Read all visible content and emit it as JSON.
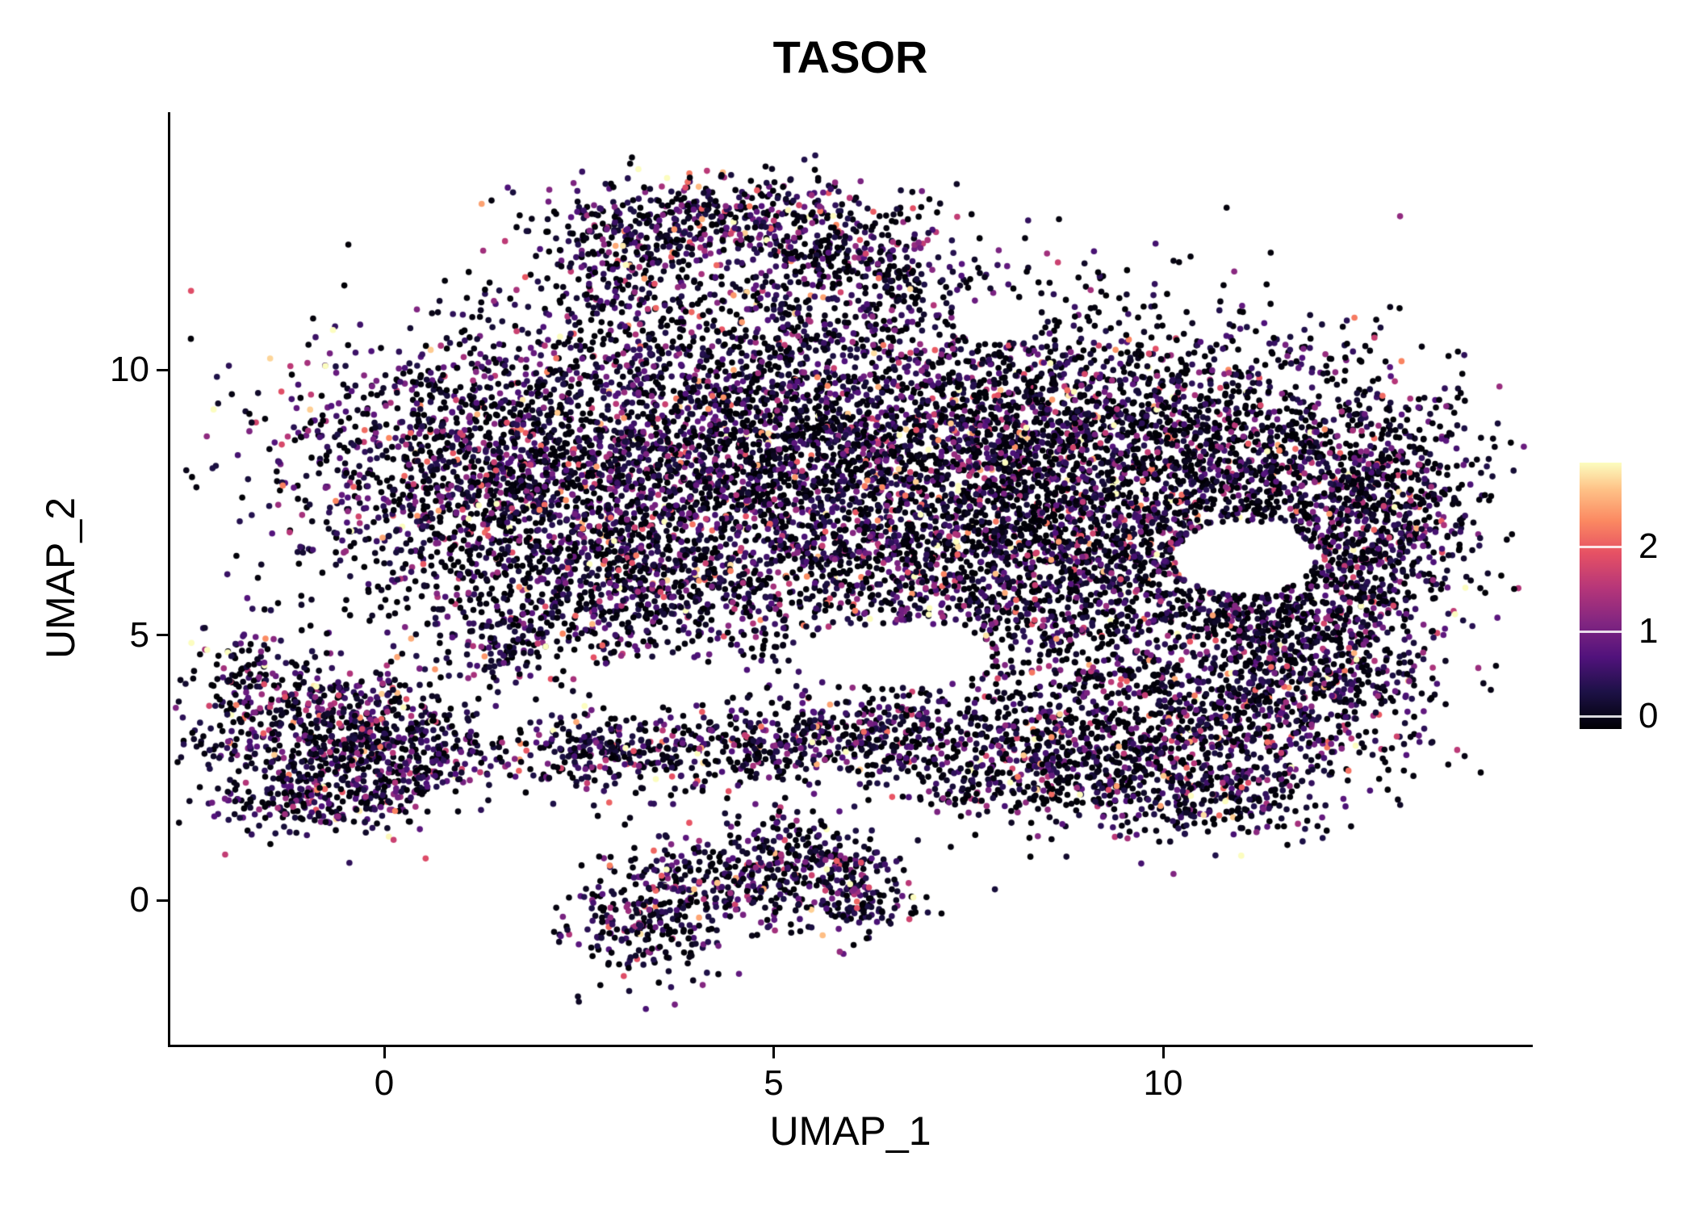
{
  "chart_data": {
    "type": "scatter",
    "title": "TASOR",
    "xlabel": "UMAP_1",
    "ylabel": "UMAP_2",
    "grid": false,
    "legend_position": "right",
    "axes": {
      "x": {
        "label": "UMAP_1",
        "ticks": [
          0,
          5,
          10
        ],
        "range": [
          -2.8,
          14.7
        ]
      },
      "y": {
        "label": "UMAP_2",
        "ticks": [
          0,
          5,
          10
        ],
        "range": [
          -2.7,
          14.8
        ]
      }
    },
    "legend": {
      "ticks": [
        2,
        1,
        0
      ],
      "range": [
        0,
        2.9
      ]
    },
    "colormap": {
      "name": "magma",
      "stops": [
        [
          0.0,
          "#000004"
        ],
        [
          0.14,
          "#1d1147"
        ],
        [
          0.27,
          "#51127c"
        ],
        [
          0.4,
          "#822681"
        ],
        [
          0.53,
          "#b63679"
        ],
        [
          0.66,
          "#e65164"
        ],
        [
          0.78,
          "#fb8861"
        ],
        [
          0.9,
          "#fec287"
        ],
        [
          1.0,
          "#fcfdbf"
        ]
      ]
    },
    "background": "#ffffff",
    "axis_color": "#000000",
    "points": {
      "radius": 3.8,
      "zero_frac": 0.3,
      "exp_scale": 0.65,
      "max_value": 2.9,
      "total": 16870
    },
    "holes": [
      {
        "x": 11.05,
        "y": 6.45,
        "rx": 0.9,
        "ry": 0.7
      },
      {
        "x": 6.5,
        "y": 4.6,
        "rx": 1.3,
        "ry": 0.6
      },
      {
        "x": 3.6,
        "y": 4.1,
        "rx": 1.1,
        "ry": 0.45
      },
      {
        "x": 7.9,
        "y": 10.9,
        "rx": 0.6,
        "ry": 0.4
      }
    ],
    "clusters": [
      {
        "x": 4.4,
        "y": 12.8,
        "sx": 1.1,
        "sy": 0.45,
        "n": 500,
        "zf": 0.25
      },
      {
        "x": 6.2,
        "y": 12.1,
        "sx": 0.7,
        "sy": 0.45,
        "n": 220,
        "zf": 0.3
      },
      {
        "x": 3.1,
        "y": 11.9,
        "sx": 0.5,
        "sy": 0.5,
        "n": 160,
        "zf": 0.25
      },
      {
        "x": 4.8,
        "y": 11.2,
        "sx": 1.5,
        "sy": 0.7,
        "n": 220,
        "zf": 0.35
      },
      {
        "x": 1.2,
        "y": 8.1,
        "sx": 1.3,
        "sy": 1.3,
        "n": 1500,
        "zf": 0.28
      },
      {
        "x": 3.9,
        "y": 8.7,
        "sx": 1.5,
        "sy": 1.4,
        "n": 1500,
        "zf": 0.3
      },
      {
        "x": 6.8,
        "y": 8.6,
        "sx": 1.7,
        "sy": 1.4,
        "n": 2000,
        "zf": 0.33
      },
      {
        "x": 9.6,
        "y": 8.4,
        "sx": 1.7,
        "sy": 1.3,
        "n": 1900,
        "zf": 0.38
      },
      {
        "x": 12.2,
        "y": 7.6,
        "sx": 1.0,
        "sy": 1.3,
        "n": 800,
        "zf": 0.38
      },
      {
        "x": 13.0,
        "y": 7.2,
        "sx": 0.5,
        "sy": 0.9,
        "n": 250,
        "zf": 0.35
      },
      {
        "x": 5.5,
        "y": 6.2,
        "sx": 2.2,
        "sy": 1.0,
        "n": 1100,
        "zf": 0.3
      },
      {
        "x": 2.9,
        "y": 6.0,
        "sx": 0.9,
        "sy": 0.9,
        "n": 450,
        "zf": 0.28
      },
      {
        "x": 9.3,
        "y": 6.0,
        "sx": 1.6,
        "sy": 0.9,
        "n": 900,
        "zf": 0.35
      },
      {
        "x": 11.6,
        "y": 5.6,
        "sx": 0.9,
        "sy": 0.8,
        "n": 400,
        "zf": 0.3
      },
      {
        "x": 9.9,
        "y": 3.2,
        "sx": 1.4,
        "sy": 0.9,
        "n": 1100,
        "zf": 0.3
      },
      {
        "x": 11.9,
        "y": 4.3,
        "sx": 0.8,
        "sy": 0.9,
        "n": 450,
        "zf": 0.3
      },
      {
        "x": 8.1,
        "y": 2.5,
        "sx": 0.9,
        "sy": 0.55,
        "n": 320,
        "zf": 0.32
      },
      {
        "x": 10.6,
        "y": 1.9,
        "sx": 0.8,
        "sy": 0.4,
        "n": 200,
        "zf": 0.3
      },
      {
        "x": 4.4,
        "y": 2.85,
        "sx": 1.4,
        "sy": 0.4,
        "n": 420,
        "zf": 0.25
      },
      {
        "x": 6.2,
        "y": 3.3,
        "sx": 0.8,
        "sy": 0.45,
        "n": 260,
        "zf": 0.27
      },
      {
        "x": 2.7,
        "y": 2.7,
        "sx": 0.5,
        "sy": 0.35,
        "n": 140,
        "zf": 0.25
      },
      {
        "x": -0.7,
        "y": 3.1,
        "sx": 0.85,
        "sy": 0.75,
        "n": 750,
        "zf": 0.22
      },
      {
        "x": 0.4,
        "y": 2.6,
        "sx": 0.5,
        "sy": 0.5,
        "n": 200,
        "zf": 0.25
      },
      {
        "x": -1.8,
        "y": 4.4,
        "sx": 0.25,
        "sy": 0.35,
        "n": 70,
        "zf": 0.25
      },
      {
        "x": -0.9,
        "y": 1.8,
        "sx": 0.6,
        "sy": 0.3,
        "n": 150,
        "zf": 0.25
      },
      {
        "x": 4.7,
        "y": 0.4,
        "sx": 0.85,
        "sy": 0.5,
        "n": 400,
        "zf": 0.25
      },
      {
        "x": 3.3,
        "y": -0.5,
        "sx": 0.45,
        "sy": 0.55,
        "n": 220,
        "zf": 0.25
      },
      {
        "x": 6.1,
        "y": 0.1,
        "sx": 0.4,
        "sy": 0.45,
        "n": 130,
        "zf": 0.28
      },
      {
        "x": 5.4,
        "y": 1.0,
        "sx": 0.4,
        "sy": 0.3,
        "n": 80,
        "zf": 0.3
      },
      {
        "x": 1.5,
        "y": 4.8,
        "sx": 0.4,
        "sy": 0.5,
        "n": 100,
        "zf": 0.3
      }
    ]
  }
}
